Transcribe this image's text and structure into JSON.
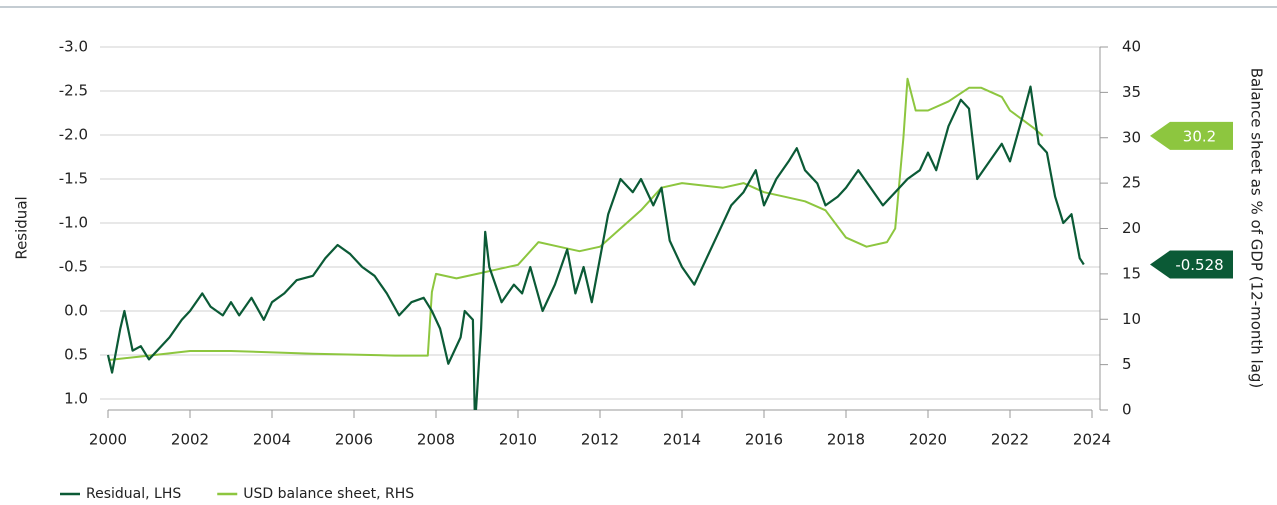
{
  "chart_data": {
    "type": "line",
    "y_label": "Residual",
    "y2_label": "Balance sheet as % of GDP (12-month lag)",
    "xlim": [
      2000,
      2024
    ],
    "xticks": [
      2000,
      2002,
      2004,
      2006,
      2008,
      2010,
      2012,
      2014,
      2016,
      2018,
      2020,
      2022,
      2024
    ],
    "ylim": [
      -3,
      1.125
    ],
    "y_inverted": true,
    "yticks": [
      {
        "value": -3,
        "label": "-3.0"
      },
      -2.5,
      {
        "value": -2,
        "label": "-2.0"
      },
      -1.5,
      {
        "value": -1,
        "label": "-1.0"
      },
      -0.5,
      {
        "value": 0,
        "label": "0.0"
      },
      0.5,
      {
        "value": 1,
        "label": "1.0"
      }
    ],
    "y2lim": [
      0,
      40
    ],
    "y2ticks": [
      0,
      5,
      10,
      15,
      20,
      25,
      30,
      35,
      40
    ],
    "grid": true,
    "legend": "bottom-left",
    "series": [
      {
        "name": "Residual, LHS",
        "color": "#0b5a36",
        "x": [
          2000.0,
          2000.1,
          2000.3,
          2000.4,
          2000.6,
          2000.8,
          2001.0,
          2001.2,
          2001.5,
          2001.8,
          2002.0,
          2002.3,
          2002.5,
          2002.8,
          2003.0,
          2003.2,
          2003.5,
          2003.8,
          2004.0,
          2004.3,
          2004.6,
          2005.0,
          2005.3,
          2005.6,
          2005.9,
          2006.2,
          2006.5,
          2006.8,
          2007.1,
          2007.4,
          2007.7,
          2007.9,
          2008.1,
          2008.3,
          2008.4,
          2008.6,
          2008.7,
          2008.9,
          2008.95,
          2009.1,
          2009.2,
          2009.3,
          2009.6,
          2009.9,
          2010.1,
          2010.3,
          2010.6,
          2010.9,
          2011.2,
          2011.4,
          2011.6,
          2011.8,
          2012.0,
          2012.2,
          2012.5,
          2012.8,
          2013.0,
          2013.3,
          2013.5,
          2013.7,
          2014.0,
          2014.3,
          2014.6,
          2014.9,
          2015.2,
          2015.5,
          2015.8,
          2016.0,
          2016.3,
          2016.6,
          2016.8,
          2017.0,
          2017.3,
          2017.5,
          2017.8,
          2018.0,
          2018.3,
          2018.6,
          2018.9,
          2019.2,
          2019.5,
          2019.8,
          2020.0,
          2020.2,
          2020.5,
          2020.8,
          2021.0,
          2021.2,
          2021.5,
          2021.8,
          2022.0,
          2022.3,
          2022.5,
          2022.7,
          2022.9,
          2023.1,
          2023.3,
          2023.5,
          2023.7,
          2023.8
        ],
        "values": [
          0.5,
          0.7,
          0.2,
          0.0,
          0.45,
          0.4,
          0.55,
          0.45,
          0.3,
          0.1,
          0.0,
          -0.2,
          -0.05,
          0.05,
          -0.1,
          0.05,
          -0.15,
          0.1,
          -0.1,
          -0.2,
          -0.35,
          -0.4,
          -0.6,
          -0.75,
          -0.65,
          -0.5,
          -0.4,
          -0.2,
          0.05,
          -0.1,
          -0.15,
          0.0,
          0.2,
          0.6,
          0.5,
          0.3,
          0.0,
          0.1,
          1.3,
          0.2,
          -0.9,
          -0.5,
          -0.1,
          -0.3,
          -0.2,
          -0.5,
          0.0,
          -0.3,
          -0.7,
          -0.2,
          -0.5,
          -0.1,
          -0.6,
          -1.1,
          -1.5,
          -1.35,
          -1.5,
          -1.2,
          -1.4,
          -0.8,
          -0.5,
          -0.3,
          -0.6,
          -0.9,
          -1.2,
          -1.35,
          -1.6,
          -1.2,
          -1.5,
          -1.7,
          -1.85,
          -1.6,
          -1.45,
          -1.2,
          -1.3,
          -1.4,
          -1.6,
          -1.4,
          -1.2,
          -1.35,
          -1.5,
          -1.6,
          -1.8,
          -1.6,
          -2.1,
          -2.4,
          -2.3,
          -1.5,
          -1.7,
          -1.9,
          -1.7,
          -2.2,
          -2.55,
          -1.9,
          -1.8,
          -1.3,
          -1.0,
          -1.1,
          -0.6,
          -0.528
        ]
      },
      {
        "name": "USD balance sheet, RHS",
        "color": "#8dc63f",
        "axis": "y2",
        "x": [
          2000,
          2001,
          2002,
          2003,
          2005,
          2007,
          2007.8,
          2007.9,
          2008.0,
          2008.5,
          2009,
          2009.5,
          2010,
          2010.5,
          2011,
          2011.5,
          2012,
          2012.5,
          2013,
          2013.5,
          2014,
          2015,
          2015.5,
          2016,
          2016.5,
          2017,
          2017.5,
          2018,
          2018.5,
          2019,
          2019.2,
          2019.4,
          2019.5,
          2019.7,
          2020,
          2020.5,
          2021,
          2021.3,
          2021.8,
          2022,
          2022.3,
          2022.6,
          2022.8
        ],
        "values": [
          5.5,
          6,
          6.5,
          6.5,
          6.2,
          6,
          6,
          13,
          15,
          14.5,
          15,
          15.5,
          16,
          18.5,
          18,
          17.5,
          18,
          20,
          22,
          24.5,
          25,
          24.5,
          25,
          24,
          23.5,
          23,
          22,
          19,
          18,
          18.5,
          20,
          30,
          36.5,
          33,
          33,
          34,
          35.5,
          35.5,
          34.5,
          33,
          32,
          31,
          30.2
        ]
      }
    ],
    "callouts": [
      {
        "value": 30.2,
        "axis": "y2",
        "color": "#8dc63f"
      },
      {
        "value": -0.528,
        "axis": "y",
        "color": "#0b5a36"
      }
    ]
  }
}
